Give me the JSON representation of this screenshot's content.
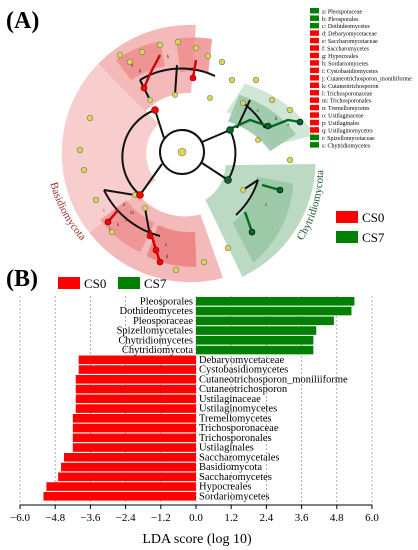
{
  "panels": [
    {
      "label": "(A)"
    },
    {
      "label": "(B)"
    }
  ],
  "cladogram": {
    "legend": [
      {
        "key": "a",
        "name": "Pleosporaceae",
        "group": "CS7"
      },
      {
        "key": "b",
        "name": "Pleosporales",
        "group": "CS7"
      },
      {
        "key": "c",
        "name": "Dothideomycetes",
        "group": "CS7"
      },
      {
        "key": "d",
        "name": "Debaryomycetaceae",
        "group": "CS0"
      },
      {
        "key": "e",
        "name": "Saccharomycetaceae",
        "group": "CS0"
      },
      {
        "key": "f",
        "name": "Saccharomycetes",
        "group": "CS0"
      },
      {
        "key": "g",
        "name": "Hypocreales",
        "group": "CS0"
      },
      {
        "key": "h",
        "name": "Sordariomycetes",
        "group": "CS0"
      },
      {
        "key": "i",
        "name": "Cystobasidiomycetes",
        "group": "CS0"
      },
      {
        "key": "j",
        "name": "Cutaneotrichosporon_moniliiforme",
        "group": "CS0"
      },
      {
        "key": "k",
        "name": "Cutaneotrichosporon",
        "group": "CS0"
      },
      {
        "key": "l",
        "name": "Trichosporonaceae",
        "group": "CS0"
      },
      {
        "key": "m",
        "name": "Trichosporonales",
        "group": "CS0"
      },
      {
        "key": "n",
        "name": "Tremellomycetes",
        "group": "CS0"
      },
      {
        "key": "o",
        "name": "Ustilaginaceae",
        "group": "CS0"
      },
      {
        "key": "p",
        "name": "Ustilaginales",
        "group": "CS0"
      },
      {
        "key": "q",
        "name": "Ustilaginomycetes",
        "group": "CS0"
      },
      {
        "key": "r",
        "name": "Spizellomycetaceae",
        "group": "CS7"
      },
      {
        "key": "s",
        "name": "Chytridiomycetes",
        "group": "CS7"
      }
    ],
    "arc_labels": {
      "left": "Basidiomycota",
      "right": "Chytridiomycota"
    },
    "group_legend": [
      {
        "name": "CS0",
        "color": "#ff0000"
      },
      {
        "name": "CS7",
        "color": "#008000"
      }
    ]
  },
  "chart_data": {
    "type": "bar",
    "orientation": "horizontal",
    "xlabel": "LDA score (log 10)",
    "xlim": [
      -6.0,
      6.0
    ],
    "xticks": [
      -6.0,
      -4.8,
      -3.6,
      -2.4,
      -1.2,
      0.0,
      1.2,
      2.4,
      3.6,
      4.8,
      6.0
    ],
    "tick_labels": [
      "−6.0",
      "−4.8",
      "−3.6",
      "−2.4",
      "−1.2",
      "0.0",
      "1.2",
      "2.4",
      "3.6",
      "4.8",
      "6.0"
    ],
    "legend": [
      {
        "name": "CS0",
        "color": "#ff0000"
      },
      {
        "name": "CS7",
        "color": "#008000"
      }
    ],
    "bars": [
      {
        "label": "Pleosporales",
        "value": 5.4,
        "group": "CS7"
      },
      {
        "label": "Dothideomycetes",
        "value": 5.3,
        "group": "CS7"
      },
      {
        "label": "Pleosporaceae",
        "value": 4.7,
        "group": "CS7"
      },
      {
        "label": "Spizellomycetales",
        "value": 4.1,
        "group": "CS7"
      },
      {
        "label": "Chytridiomycetes",
        "value": 4.0,
        "group": "CS7"
      },
      {
        "label": "Chytridiomycota",
        "value": 4.0,
        "group": "CS7"
      },
      {
        "label": "Debaryomycetaceae",
        "value": -4.0,
        "group": "CS0"
      },
      {
        "label": "Cystobasidiomycetes",
        "value": -4.0,
        "group": "CS0"
      },
      {
        "label": "Cutaneotrichosporon_moniliiforme",
        "value": -4.1,
        "group": "CS0"
      },
      {
        "label": "Cutaneotrichosporon",
        "value": -4.1,
        "group": "CS0"
      },
      {
        "label": "Ustilaginaceae",
        "value": -4.1,
        "group": "CS0"
      },
      {
        "label": "Ustilaginomycetes",
        "value": -4.1,
        "group": "CS0"
      },
      {
        "label": "Tremellomycetes",
        "value": -4.2,
        "group": "CS0"
      },
      {
        "label": "Trichosporonaceae",
        "value": -4.2,
        "group": "CS0"
      },
      {
        "label": "Trichosporonales",
        "value": -4.2,
        "group": "CS0"
      },
      {
        "label": "Ustilaginales",
        "value": -4.2,
        "group": "CS0"
      },
      {
        "label": "Saccharomycetales",
        "value": -4.5,
        "group": "CS0"
      },
      {
        "label": "Basidiomycota",
        "value": -4.6,
        "group": "CS0"
      },
      {
        "label": "Saccharomycetes",
        "value": -4.7,
        "group": "CS0"
      },
      {
        "label": "Hypocreales",
        "value": -5.1,
        "group": "CS0"
      },
      {
        "label": "Sordariomycetes",
        "value": -5.2,
        "group": "CS0"
      }
    ]
  }
}
